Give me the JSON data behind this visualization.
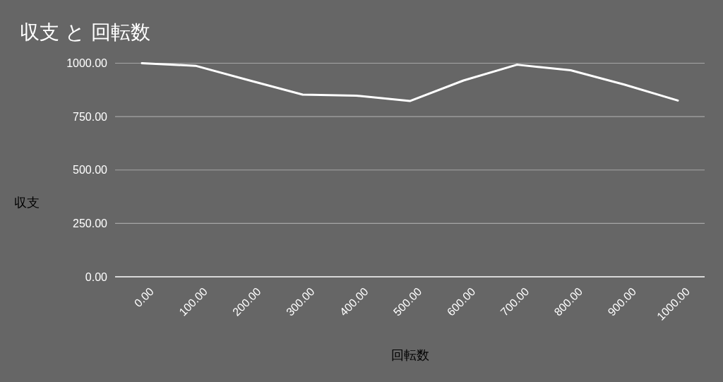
{
  "chart_data": {
    "type": "line",
    "title": "収支 と 回転数",
    "xlabel": "回転数",
    "ylabel": "収支",
    "categories": [
      "0.00",
      "100.00",
      "200.00",
      "300.00",
      "400.00",
      "500.00",
      "600.00",
      "700.00",
      "800.00",
      "900.00",
      "1000.00"
    ],
    "series": [
      {
        "color": "#ffffff",
        "values": [
          1000,
          988,
          920,
          853,
          848,
          823,
          919,
          993,
          967,
          900,
          825
        ]
      }
    ],
    "ylim": [
      0,
      1000
    ],
    "yticks": [
      {
        "value": 0,
        "label": "0.00"
      },
      {
        "value": 250,
        "label": "250.00"
      },
      {
        "value": 500,
        "label": "500.00"
      },
      {
        "value": 750,
        "label": "750.00"
      },
      {
        "value": 1000,
        "label": "1000.00"
      }
    ],
    "grid": "y"
  }
}
